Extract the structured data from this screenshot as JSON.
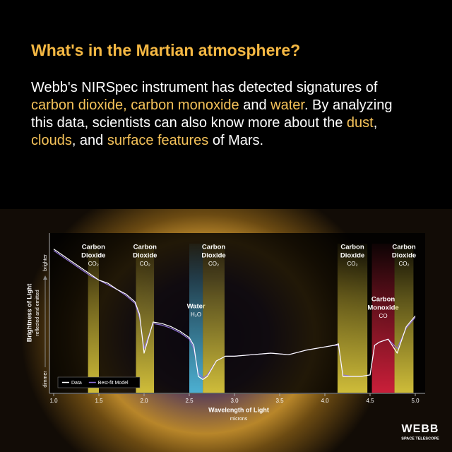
{
  "header": {
    "title": "What's in the Martian atmosphere?",
    "paragraph": [
      {
        "text": "Webb's NIRSpec instrument has detected signatures of ",
        "highlight": false
      },
      {
        "text": "carbon dioxide, carbon monoxide",
        "highlight": true
      },
      {
        "text": " and ",
        "highlight": false
      },
      {
        "text": "water",
        "highlight": true
      },
      {
        "text": ". By analyzing this data, scientists can also know more about the ",
        "highlight": false
      },
      {
        "text": "dust",
        "highlight": true
      },
      {
        "text": ", ",
        "highlight": false
      },
      {
        "text": "clouds",
        "highlight": true
      },
      {
        "text": ", and ",
        "highlight": false
      },
      {
        "text": "surface features",
        "highlight": true
      },
      {
        "text": " of Mars.",
        "highlight": false
      }
    ],
    "highlight_color": "#f6c35a"
  },
  "chart_data": {
    "type": "line",
    "x_label": "Wavelength of Light",
    "x_sublabel": "microns",
    "y_label": "Brightness of Light",
    "y_sublabel": "reflected and emitted",
    "y_top_label": "brighter",
    "y_bottom_label": "dimmer",
    "xlim": [
      1.0,
      5.0
    ],
    "xticks": [
      {
        "value": 1,
        "label": "1.0"
      },
      {
        "value": 1.5,
        "label": "1.5"
      },
      {
        "value": 2,
        "label": "2.0"
      },
      {
        "value": 2.5,
        "label": "2.5"
      },
      {
        "value": 3,
        "label": "3.0"
      },
      {
        "value": 3.5,
        "label": "3.5"
      },
      {
        "value": 4,
        "label": "4.0"
      },
      {
        "value": 4.5,
        "label": "4.5"
      },
      {
        "value": 5,
        "label": "5.0"
      }
    ],
    "ylim": [
      0,
      100
    ],
    "x": [
      1.0,
      1.1,
      1.2,
      1.3,
      1.4,
      1.5,
      1.6,
      1.7,
      1.8,
      1.9,
      1.95,
      2.0,
      2.05,
      2.1,
      2.2,
      2.3,
      2.4,
      2.5,
      2.55,
      2.6,
      2.65,
      2.7,
      2.8,
      2.9,
      3.0,
      3.2,
      3.4,
      3.6,
      3.8,
      4.0,
      4.1,
      4.15,
      4.2,
      4.3,
      4.4,
      4.5,
      4.55,
      4.6,
      4.7,
      4.8,
      4.9,
      5.0
    ],
    "series": [
      {
        "name": "Best-fit Model",
        "color": "#8d6fd6",
        "values": [
          91,
          87,
          83,
          79,
          75,
          72,
          69,
          66,
          62,
          57,
          48,
          28,
          36,
          44,
          43,
          41,
          38,
          34,
          28,
          12,
          9,
          11,
          20,
          23,
          23,
          24,
          25,
          24,
          27,
          29,
          30,
          30,
          11,
          10,
          10,
          11,
          30,
          32,
          34,
          28,
          41,
          48
        ]
      },
      {
        "name": "Data",
        "color": "#ffffff",
        "values": [
          92,
          88,
          84,
          80,
          76,
          72,
          70,
          66,
          63,
          58,
          50,
          25,
          35,
          45,
          44,
          42,
          39,
          35,
          30,
          10,
          8,
          10,
          20,
          23,
          23,
          24,
          25,
          24,
          27,
          29,
          30,
          31,
          10,
          10,
          10,
          11,
          30,
          32,
          34,
          25,
          42,
          49
        ]
      }
    ],
    "legend": "lower left",
    "bands": [
      {
        "label": [
          "Carbon",
          "Dioxide"
        ],
        "formula": "CO₂",
        "xrange": [
          1.38,
          1.5
        ],
        "color": "#d9c63c"
      },
      {
        "label": [
          "Carbon",
          "Dioxide"
        ],
        "formula": "CO₂",
        "xrange": [
          1.91,
          2.11
        ],
        "color": "#d9c63c"
      },
      {
        "label": [
          "Water"
        ],
        "formula": "H₂O",
        "xrange": [
          2.5,
          2.65
        ],
        "color": "#4fb8dc"
      },
      {
        "label": [
          "Carbon",
          "Dioxide"
        ],
        "formula": "CO₂",
        "xrange": [
          2.65,
          2.89
        ],
        "color": "#d9c63c"
      },
      {
        "label": [
          "Carbon",
          "Dioxide"
        ],
        "formula": "CO₂",
        "xrange": [
          4.14,
          4.47
        ],
        "color": "#d9c63c"
      },
      {
        "label": [
          "Carbon",
          "Monoxide"
        ],
        "formula": "CO",
        "xrange": [
          4.52,
          4.77
        ],
        "color": "#d4203c"
      },
      {
        "label": [
          "Carbon",
          "Dioxide"
        ],
        "formula": "CO₂",
        "xrange": [
          4.77,
          4.98
        ],
        "color": "#d9c63c"
      }
    ]
  },
  "footer": {
    "logo": "WEBB",
    "logo_sub": "SPACE TELESCOPE"
  }
}
